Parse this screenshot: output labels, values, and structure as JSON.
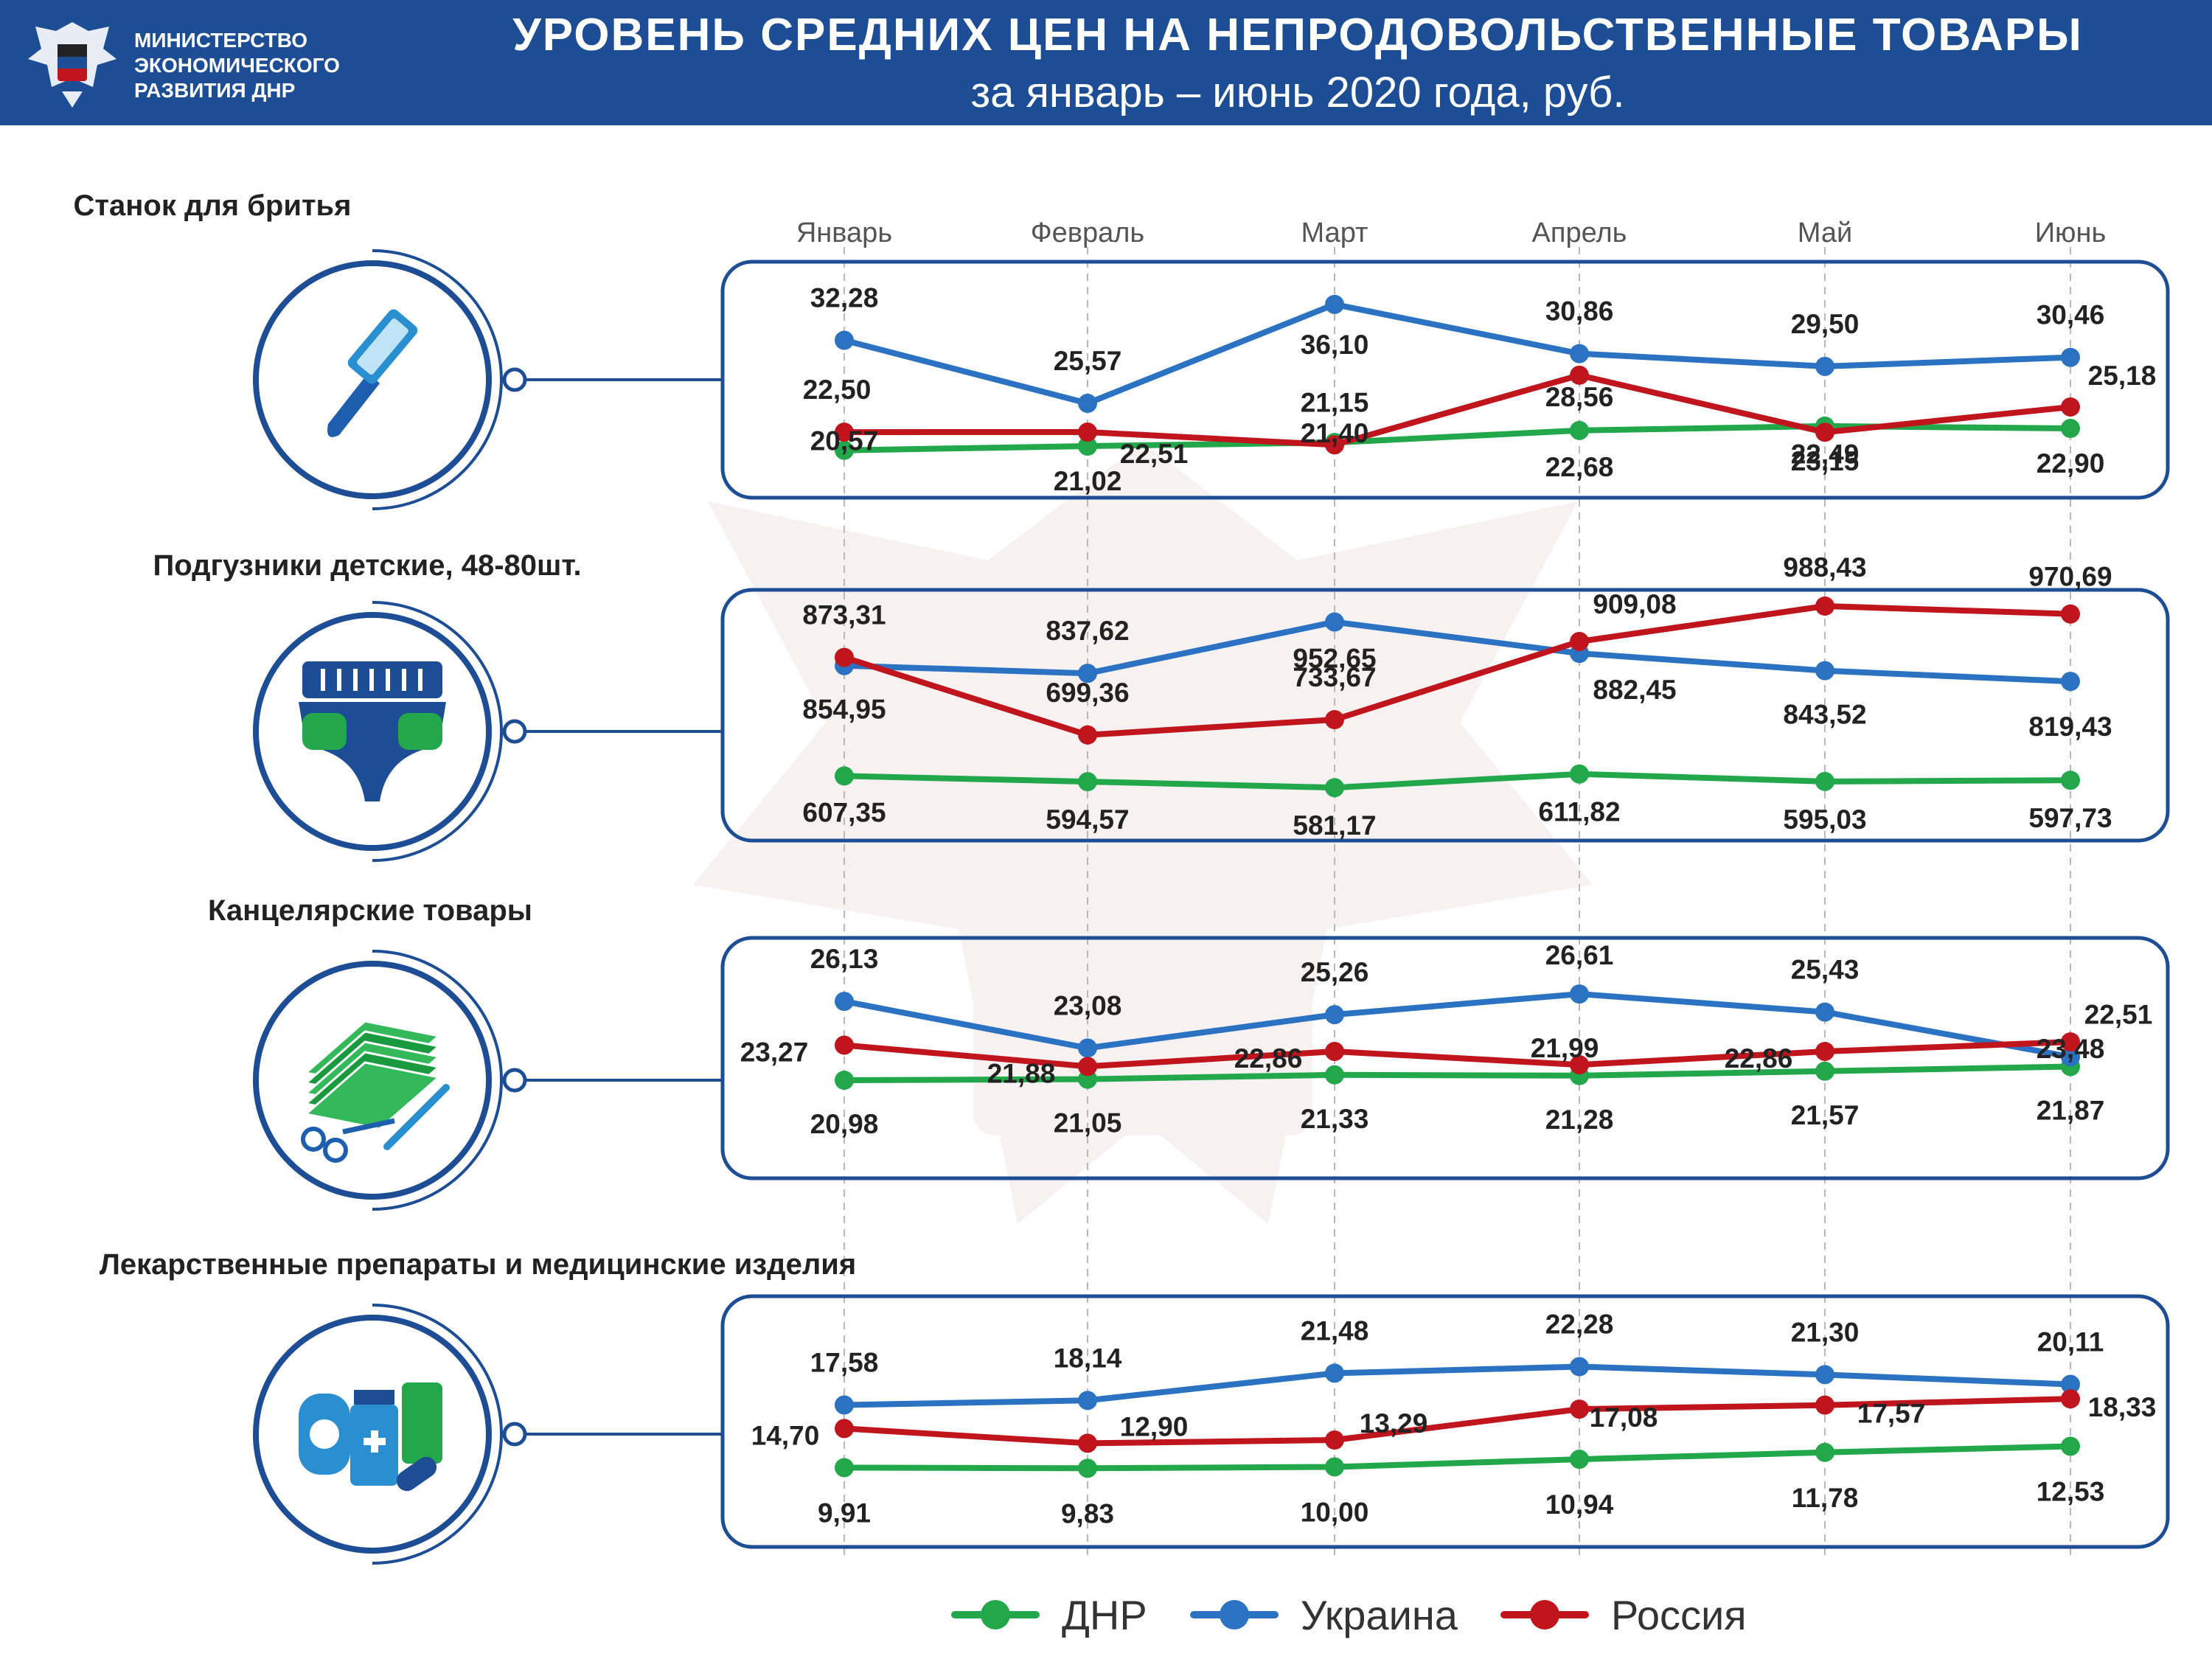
{
  "header": {
    "org_lines": [
      "МИНИСТЕРСТВО",
      "ЭКОНОМИЧЕСКОГО",
      "РАЗВИТИЯ ДНР"
    ],
    "title": "УРОВЕНЬ СРЕДНИХ ЦЕН НА НЕПРОДОВОЛЬСТВЕННЫЕ ТОВАРЫ",
    "subtitle": "за январь – июнь 2020 года, руб."
  },
  "colors": {
    "header_bg": "#1d4d94",
    "panel_border": "#1d4d94",
    "dnr": "#22a84a",
    "ukraine": "#2b73c2",
    "russia": "#c0151c"
  },
  "legend": [
    {
      "key": "dnr",
      "label": "ДНР",
      "color": "#22a84a"
    },
    {
      "key": "ukraine",
      "label": "Украина",
      "color": "#2b73c2"
    },
    {
      "key": "russia",
      "label": "Россия",
      "color": "#c0151c"
    }
  ],
  "chart_data": {
    "type": "line",
    "categories": [
      "Январь",
      "Февраль",
      "Март",
      "Апрель",
      "Май",
      "Июнь"
    ],
    "panels": [
      {
        "title": "Станок для бритья",
        "icon": "razor-icon",
        "series": [
          {
            "name": "ДНР",
            "values": [
              20.57,
              21.02,
              21.4,
              22.68,
              23.15,
              22.9
            ],
            "labels": [
              "20,57",
              "21,02",
              "21,40",
              "22,68",
              "23,15",
              "22,90"
            ]
          },
          {
            "name": "Украина",
            "values": [
              32.28,
              25.57,
              36.1,
              30.86,
              29.5,
              30.46
            ],
            "labels": [
              "32,28",
              "25,57",
              "36,10",
              "30,86",
              "29,50",
              "30,46"
            ]
          },
          {
            "name": "Россия",
            "values": [
              22.5,
              22.51,
              21.15,
              28.56,
              22.49,
              25.18
            ],
            "labels": [
              "22,50",
              "22,51",
              "21,15",
              "28,56",
              "22,49",
              "25,18"
            ]
          }
        ]
      },
      {
        "title": "Подгузники детские, 48-80шт.",
        "icon": "diaper-icon",
        "series": [
          {
            "name": "ДНР",
            "values": [
              607.35,
              594.57,
              581.17,
              611.82,
              595.03,
              597.73
            ],
            "labels": [
              "607,35",
              "594,57",
              "581,17",
              "611,82",
              "595,03",
              "597,73"
            ]
          },
          {
            "name": "Украина",
            "values": [
              854.95,
              837.62,
              952.65,
              882.45,
              843.52,
              819.43
            ],
            "labels": [
              "854,95",
              "837,62",
              "952,65",
              "882,45",
              "843,52",
              "819,43"
            ]
          },
          {
            "name": "Россия",
            "values": [
              873.31,
              699.36,
              733.67,
              909.08,
              988.43,
              970.69
            ],
            "labels": [
              "873,31",
              "699,36",
              "733,67",
              "909,08",
              "988,43",
              "970,69"
            ]
          }
        ]
      },
      {
        "title": "Канцелярские товары",
        "icon": "stationery-icon",
        "series": [
          {
            "name": "ДНР",
            "values": [
              20.98,
              21.05,
              21.33,
              21.28,
              21.57,
              21.87
            ],
            "labels": [
              "20,98",
              "21,05",
              "21,33",
              "21,28",
              "21,57",
              "21,87"
            ]
          },
          {
            "name": "Украина",
            "values": [
              26.13,
              23.08,
              25.26,
              26.61,
              25.43,
              22.51
            ],
            "labels": [
              "26,13",
              "23,08",
              "25,26",
              "26,61",
              "25,43",
              "22,51"
            ]
          },
          {
            "name": "Россия",
            "values": [
              23.27,
              21.88,
              22.86,
              21.99,
              22.86,
              23.48
            ],
            "labels": [
              "23,27",
              "21,88",
              "22,86",
              "21,99",
              "22,86",
              "23,48"
            ]
          }
        ]
      },
      {
        "title": "Лекарственные препараты и медицинские изделия",
        "icon": "medicine-icon",
        "series": [
          {
            "name": "ДНР",
            "values": [
              9.91,
              9.83,
              10.0,
              10.94,
              11.78,
              12.53
            ],
            "labels": [
              "9,91",
              "9,83",
              "10,00",
              "10,94",
              "11,78",
              "12,53"
            ]
          },
          {
            "name": "Украина",
            "values": [
              17.58,
              18.14,
              21.48,
              22.28,
              21.3,
              20.11
            ],
            "labels": [
              "17,58",
              "18,14",
              "21,48",
              "22,28",
              "21,30",
              "20,11"
            ]
          },
          {
            "name": "Россия",
            "values": [
              14.7,
              12.9,
              13.29,
              17.08,
              17.57,
              18.33
            ],
            "labels": [
              "14,70",
              "12,90",
              "13,29",
              "17,08",
              "17,57",
              "18,33"
            ]
          }
        ]
      }
    ]
  }
}
